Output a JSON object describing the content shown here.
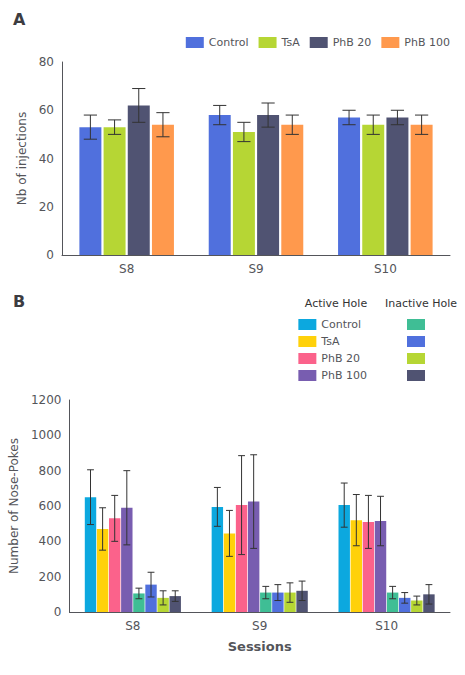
{
  "chart_data": [
    {
      "type": "bar",
      "title": "A",
      "ylabel": "Nb of injections",
      "categories": [
        "S8",
        "S9",
        "S10"
      ],
      "ylim": [
        0,
        80
      ],
      "yticks": [
        0,
        20,
        40,
        60,
        80
      ],
      "grid": false,
      "legend": "upper right",
      "series": [
        {
          "name": "Control",
          "values": [
            53,
            58,
            57
          ],
          "errors": [
            5,
            4,
            3
          ]
        },
        {
          "name": "TsA",
          "values": [
            53,
            51,
            54
          ],
          "errors": [
            3,
            4,
            4
          ]
        },
        {
          "name": "PhB 20",
          "values": [
            62,
            58,
            57
          ],
          "errors": [
            7,
            5,
            3
          ]
        },
        {
          "name": "PhB 100",
          "values": [
            54,
            54,
            54
          ],
          "errors": [
            5,
            4,
            4
          ]
        }
      ]
    },
    {
      "type": "bar",
      "title": "B",
      "ylabel": "Number of Nose-Pokes",
      "xlabel": "Sessions",
      "categories": [
        "S8",
        "S9",
        "S10"
      ],
      "ylim": [
        0,
        1200
      ],
      "yticks": [
        0,
        200,
        400,
        600,
        800,
        1000,
        1200
      ],
      "grid": false,
      "legend": "upper right",
      "series": [
        {
          "name": "Control",
          "hole": "Active Hole",
          "values": [
            650,
            595,
            605
          ],
          "errors": [
            155,
            110,
            125
          ]
        },
        {
          "name": "TsA",
          "hole": "Active Hole",
          "values": [
            470,
            445,
            520
          ],
          "errors": [
            120,
            130,
            145
          ]
        },
        {
          "name": "PhB 20",
          "hole": "Active Hole",
          "values": [
            530,
            605,
            510
          ],
          "errors": [
            130,
            280,
            150
          ]
        },
        {
          "name": "PhB 100",
          "hole": "Active Hole",
          "values": [
            590,
            625,
            515
          ],
          "errors": [
            210,
            265,
            140
          ]
        },
        {
          "name": "Control",
          "hole": "Inactive Hole",
          "values": [
            105,
            110,
            110
          ],
          "errors": [
            30,
            35,
            35
          ]
        },
        {
          "name": "TsA",
          "hole": "Inactive Hole",
          "values": [
            155,
            110,
            80
          ],
          "errors": [
            70,
            45,
            30
          ]
        },
        {
          "name": "PhB 20",
          "hole": "Inactive Hole",
          "values": [
            80,
            110,
            65
          ],
          "errors": [
            40,
            55,
            25
          ]
        },
        {
          "name": "PhB 100",
          "hole": "Inactive Hole",
          "values": [
            90,
            120,
            100
          ],
          "errors": [
            30,
            55,
            55
          ]
        }
      ]
    }
  ]
}
